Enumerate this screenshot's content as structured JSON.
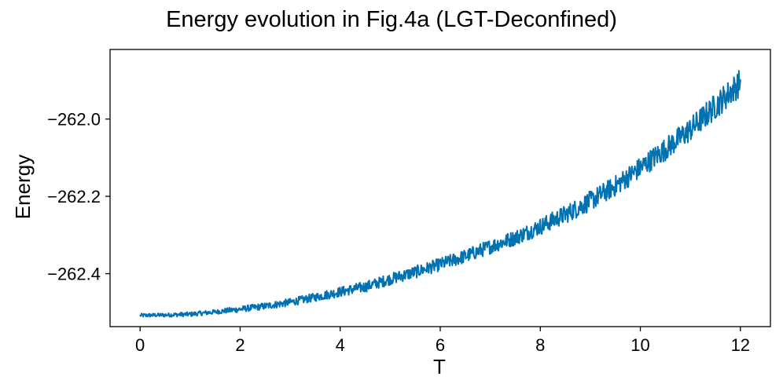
{
  "chart_data": {
    "type": "line",
    "title": "Energy evolution in Fig.4a (LGT-Deconfined)",
    "xlabel": "T",
    "ylabel": "Energy",
    "xlim": [
      -0.6,
      12.6
    ],
    "ylim": [
      -262.537,
      -261.82
    ],
    "xticks": [
      0,
      2,
      4,
      6,
      8,
      10,
      12
    ],
    "xtick_labels": [
      "0",
      "2",
      "4",
      "6",
      "8",
      "10",
      "12"
    ],
    "yticks": [
      -262.4,
      -262.2,
      -262.0
    ],
    "ytick_labels": [
      "−262.4",
      "−262.2",
      "−262.0"
    ],
    "grid": false,
    "series": [
      {
        "name": "Energy",
        "color": "#0072b2",
        "x": [
          0,
          0.5,
          1,
          1.5,
          2,
          2.5,
          3,
          3.5,
          4,
          4.5,
          5,
          5.5,
          6,
          6.5,
          7,
          7.5,
          8,
          8.5,
          9,
          9.5,
          10,
          10.5,
          11,
          11.5,
          12
        ],
        "values": [
          -262.508,
          -262.507,
          -262.505,
          -262.499,
          -262.492,
          -262.484,
          -262.474,
          -262.461,
          -262.447,
          -262.434,
          -262.414,
          -262.396,
          -262.376,
          -262.355,
          -262.33,
          -262.307,
          -262.278,
          -262.247,
          -262.212,
          -262.173,
          -262.126,
          -262.078,
          -262.027,
          -261.967,
          -261.905
        ],
        "noise": [
          0.005,
          0.005,
          0.006,
          0.006,
          0.008,
          0.009,
          0.01,
          0.011,
          0.013,
          0.014,
          0.015,
          0.016,
          0.017,
          0.018,
          0.019,
          0.02,
          0.022,
          0.024,
          0.026,
          0.027,
          0.028,
          0.03,
          0.032,
          0.034,
          0.036
        ]
      }
    ]
  }
}
